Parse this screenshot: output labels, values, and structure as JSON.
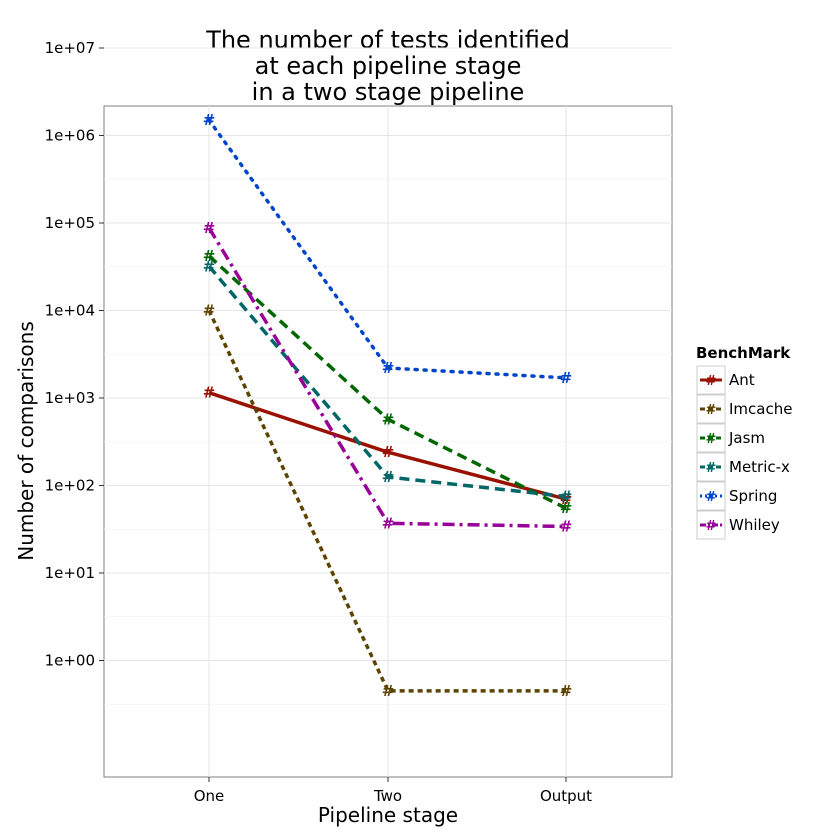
{
  "chart_data": {
    "type": "line",
    "title_lines": [
      "The number of tests identified",
      "at each pipeline stage",
      "in a two stage pipeline"
    ],
    "xlabel": "Pipeline stage",
    "ylabel": "Number of comparisons",
    "categories": [
      "One",
      "Two",
      "Output"
    ],
    "y_scale": "log10",
    "ylim": [
      0.45,
      20000000
    ],
    "y_ticks": [
      1,
      10,
      100,
      1000,
      10000,
      100000,
      1000000,
      10000000
    ],
    "y_tick_labels": [
      "1e+00",
      "1e+01",
      "1e+02",
      "1e+03",
      "1e+04",
      "1e+05",
      "1e+06",
      "1e+07"
    ],
    "grid": true,
    "legend_title": "BenchMark",
    "legend_position": "right",
    "marker": "#",
    "series": [
      {
        "name": "Ant",
        "values": [
          1150,
          240,
          70
        ],
        "color": "#991100",
        "dash": "solid"
      },
      {
        "name": "Imcache",
        "values": [
          10000,
          0.45,
          0.45
        ],
        "color": "#5c4400",
        "dash": "dashed-short"
      },
      {
        "name": "Jasm",
        "values": [
          42000,
          570,
          55
        ],
        "color": "#006600",
        "dash": "dashed"
      },
      {
        "name": "Metric-x",
        "values": [
          32000,
          125,
          75
        ],
        "color": "#006666",
        "dash": "dashed"
      },
      {
        "name": "Spring",
        "values": [
          1500000,
          2200,
          1700
        ],
        "color": "#0044cc",
        "dash": "dotted"
      },
      {
        "name": "Whiley",
        "values": [
          88000,
          37,
          34
        ],
        "color": "#990099",
        "dash": "dashdot"
      }
    ]
  }
}
